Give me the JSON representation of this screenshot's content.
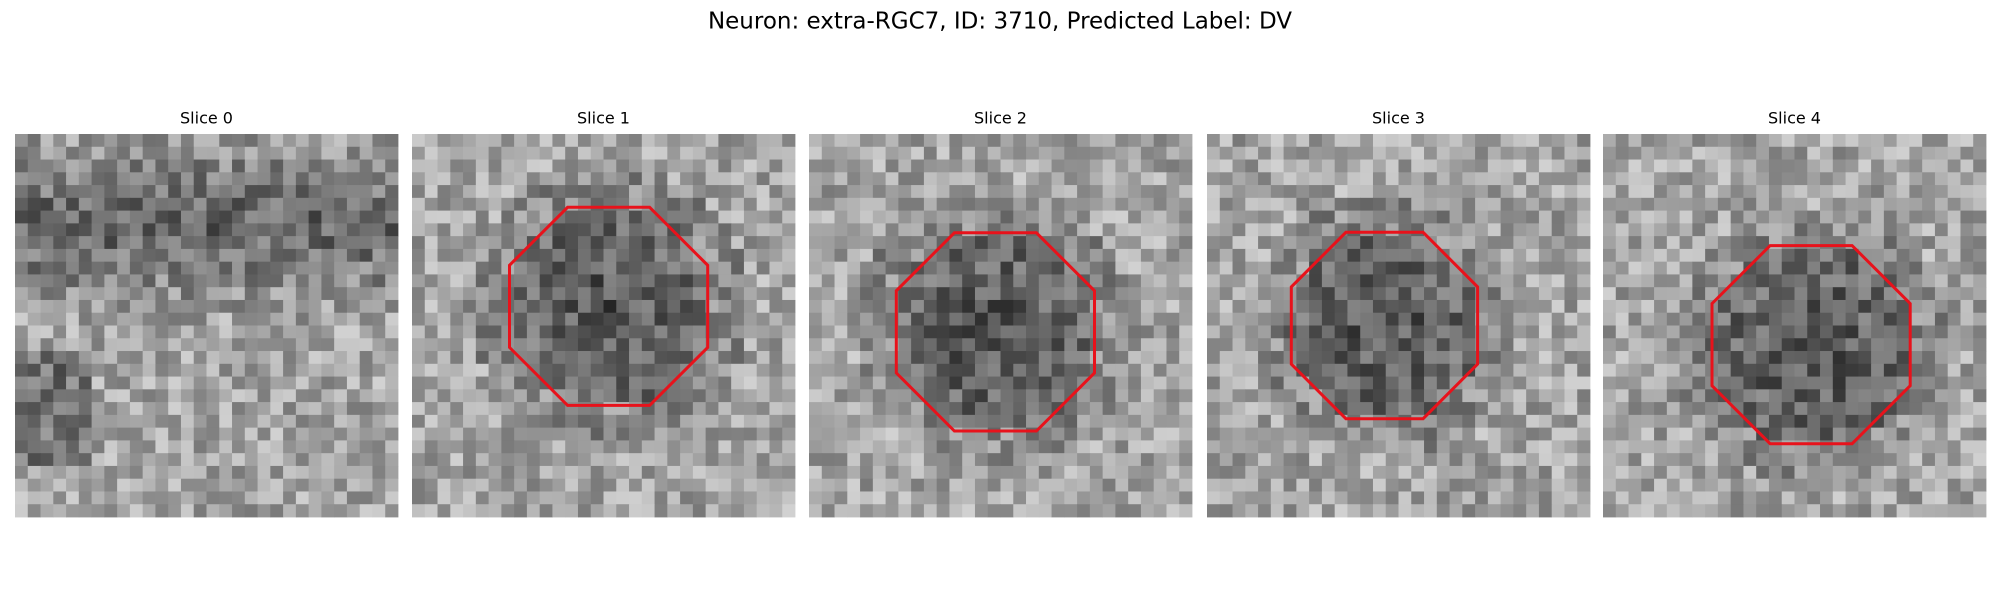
{
  "title": "Neuron: extra-RGC7, ID: 3710, Predicted Label: DV",
  "panels": [
    {
      "title": "Slice 0"
    },
    {
      "title": "Slice 1"
    },
    {
      "title": "Slice 2"
    },
    {
      "title": "Slice 3"
    },
    {
      "title": "Slice 4"
    }
  ]
}
